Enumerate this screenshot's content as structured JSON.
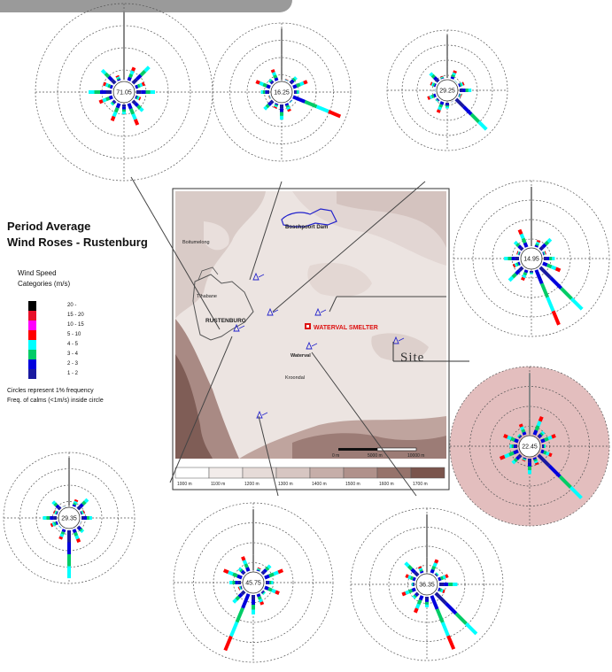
{
  "title": {
    "line1": "Period Average",
    "line2": "Wind Roses - Rustenburg"
  },
  "legend": {
    "title_line1": "Wind Speed",
    "title_line2": "Categories (m/s)",
    "categories": [
      {
        "label": "20 -",
        "color": "#000000"
      },
      {
        "label": "15 - 20",
        "color": "#e8102a"
      },
      {
        "label": "10 - 15",
        "color": "#ff00ff"
      },
      {
        "label": "5 - 10",
        "color": "#ff0000"
      },
      {
        "label": "4 - 5",
        "color": "#00ffff"
      },
      {
        "label": "3 - 4",
        "color": "#00cc66"
      },
      {
        "label": "2 - 3",
        "color": "#0000dd"
      },
      {
        "label": "1 - 2",
        "color": "#1a1aa0"
      }
    ],
    "footnote1": "Circles represent 1% frequency",
    "footnote2": "Freq. of calms (<1m/s) inside circle"
  },
  "map": {
    "place_names": [
      {
        "name": "Boschpoort Dam",
        "key": "boschpoort"
      },
      {
        "name": "Boitumelong",
        "key": "boitumelong"
      },
      {
        "name": "Tlhabane",
        "key": "tlhabane"
      },
      {
        "name": "RUSTENBURG",
        "key": "rustenburg"
      },
      {
        "name": "Waterval",
        "key": "waterval"
      },
      {
        "name": "Kroondal",
        "key": "kroondal"
      }
    ],
    "smelter_label": "WATERVAL SMELTER",
    "site_label": "Site",
    "scale_labels": [
      "0 m",
      "5000 m",
      "10000 m"
    ],
    "elevation_labels": [
      "1000 m",
      "1100 m",
      "1200 m",
      "1300 m",
      "1400 m",
      "1500 m",
      "1600 m",
      "1700 m"
    ],
    "elevation_colors": [
      "#ffffff",
      "#f2ecea",
      "#e6dbd8",
      "#d7c6c2",
      "#c6aea9",
      "#b0918b",
      "#96736b",
      "#7a544c"
    ]
  },
  "wind_roses": [
    {
      "id": "rose-1",
      "calm": "71.05",
      "highlighted": false
    },
    {
      "id": "rose-2",
      "calm": "16.25",
      "highlighted": false
    },
    {
      "id": "rose-3",
      "calm": "29.25",
      "highlighted": false
    },
    {
      "id": "rose-4",
      "calm": "14.95",
      "highlighted": false
    },
    {
      "id": "rose-5",
      "calm": "22.45",
      "highlighted": true
    },
    {
      "id": "rose-6",
      "calm": "29.35",
      "highlighted": false
    },
    {
      "id": "rose-7",
      "calm": "45.75",
      "highlighted": false
    },
    {
      "id": "rose-8",
      "calm": "36.35",
      "highlighted": false
    }
  ],
  "colors": {
    "ring": "#555555",
    "highlight_fill": "#d9a8a8",
    "map_base": "#ece4e1",
    "smelter": "#dd1111",
    "station": "#2222cc"
  }
}
